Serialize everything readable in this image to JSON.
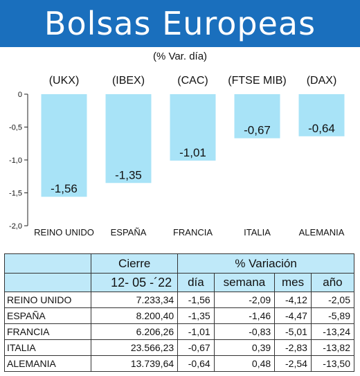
{
  "header": {
    "title": "Bolsas Europeas",
    "subtitle": "(% Var. día)"
  },
  "chart_data": {
    "type": "bar",
    "categories": [
      "REINO UNIDO",
      "ESPAÑA",
      "FRANCIA",
      "ITALIA",
      "ALEMANIA"
    ],
    "index_labels": [
      "(UKX)",
      "(IBEX)",
      "(CAC)",
      "(FTSE MIB)",
      "(DAX)"
    ],
    "values": [
      -1.56,
      -1.35,
      -1.01,
      -0.67,
      -0.64
    ],
    "value_labels": [
      "-1,56",
      "-1,35",
      "-1,01",
      "-0,67",
      "-0,64"
    ],
    "yticks": [
      0,
      -0.5,
      -1.0,
      -1.5,
      -2.0
    ],
    "ytick_labels": [
      "0",
      "-0,5",
      "-1,0",
      "-1,5",
      "-2,0"
    ],
    "ylim": [
      -2.0,
      0
    ],
    "bar_color": "#a8e3f7",
    "grid": false
  },
  "table": {
    "cierre_label": "Cierre",
    "variacion_label": "% Variación",
    "date": "12- 05 -´22",
    "columns": [
      "día",
      "semana",
      "mes",
      "año"
    ],
    "rows": [
      {
        "name": "REINO UNIDO",
        "cierre": "7.233,34",
        "dia": "-1,56",
        "semana": "-2,09",
        "mes": "-4,12",
        "ano": "-2,05"
      },
      {
        "name": "ESPAÑA",
        "cierre": "8.200,40",
        "dia": "-1,35",
        "semana": "-1,46",
        "mes": "-4,47",
        "ano": "-5,89"
      },
      {
        "name": "FRANCIA",
        "cierre": "6.206,26",
        "dia": "-1,01",
        "semana": "-0,83",
        "mes": "-5,01",
        "ano": "-13,24"
      },
      {
        "name": "ITALIA",
        "cierre": "23.566,23",
        "dia": "-0,67",
        "semana": "0,39",
        "mes": "-2,83",
        "ano": "-13,82"
      },
      {
        "name": "ALEMANIA",
        "cierre": "13.739,64",
        "dia": "-0,64",
        "semana": "0,48",
        "mes": "-2,54",
        "ano": "-13,50"
      }
    ],
    "header_color": "#bfe9f9"
  },
  "colors": {
    "banner": "#1a6fbd",
    "bars": "#a8e3f7"
  }
}
